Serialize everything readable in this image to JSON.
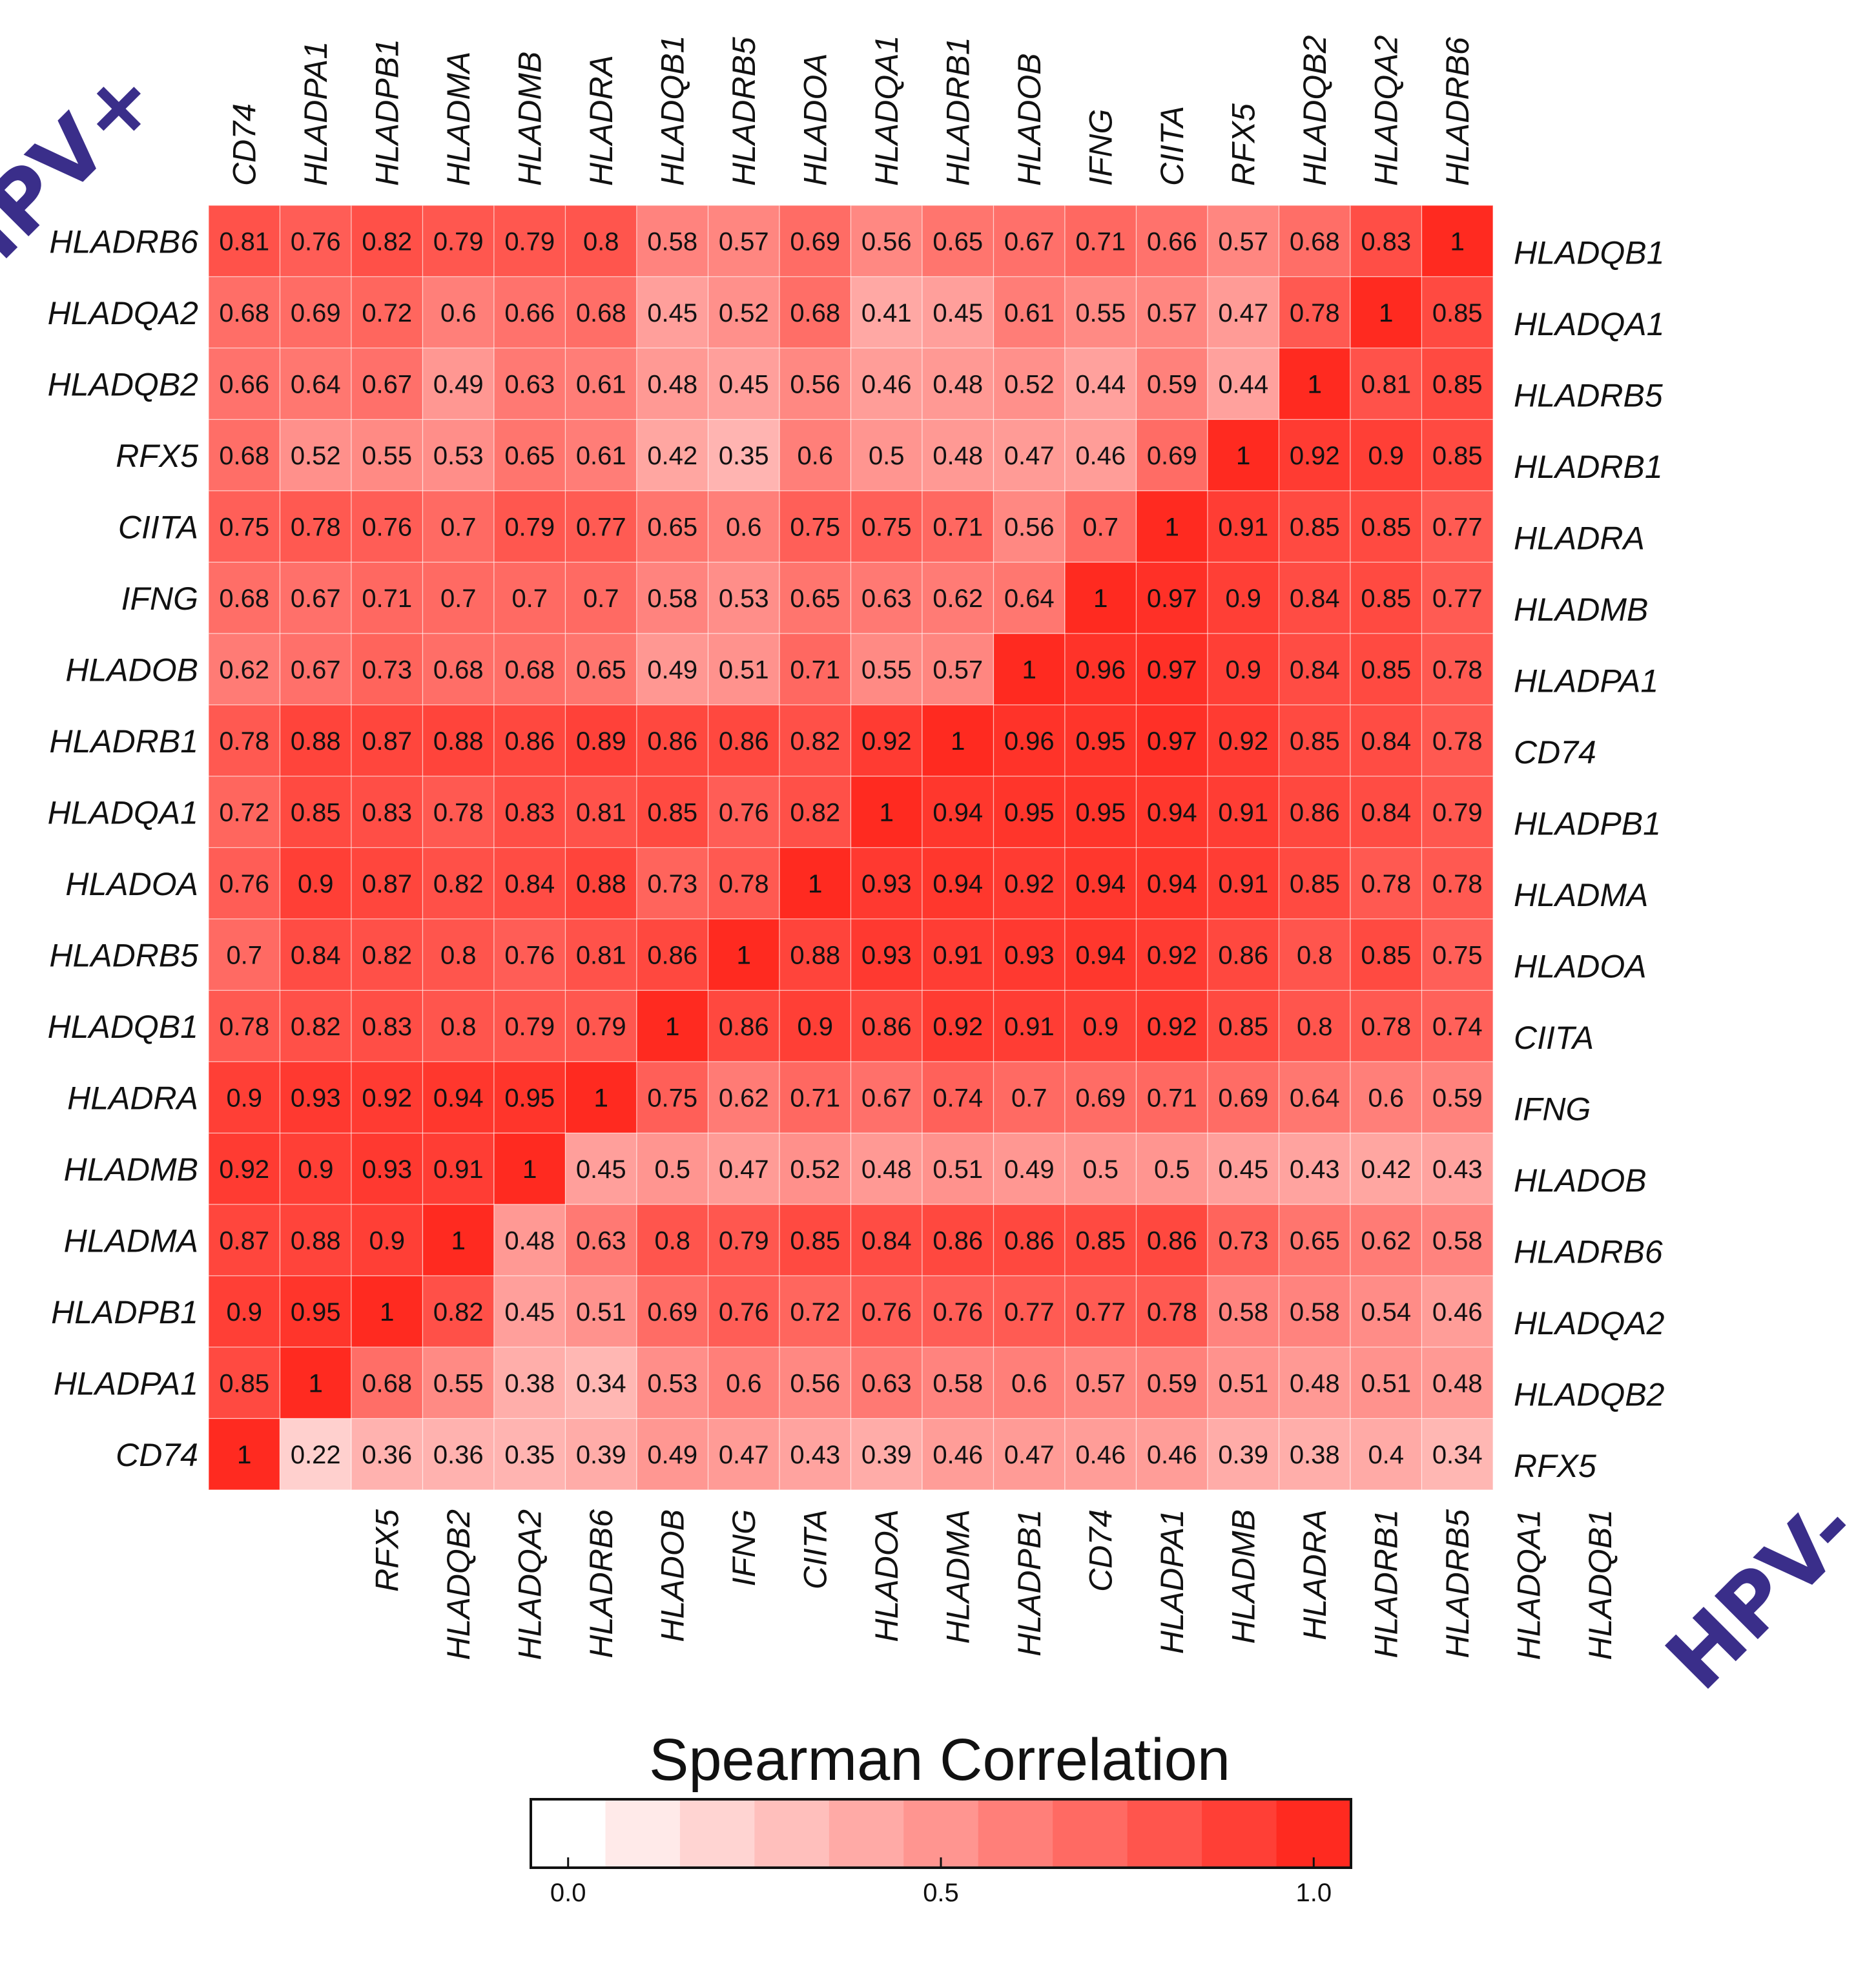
{
  "chart_data": {
    "type": "heatmap",
    "title": "Spearman Correlation",
    "groups": {
      "upper_left": "HPV+",
      "lower_right": "HPV-"
    },
    "colors": {
      "group_label": "#3a2e8a",
      "max": "#ff2a20",
      "min": "#ffffff"
    },
    "hpv_pos": {
      "columns": [
        "CD74",
        "HLADPA1",
        "HLADPB1",
        "HLADMA",
        "HLADMB",
        "HLADRA",
        "HLADQB1",
        "HLADRB5",
        "HLADOA",
        "HLADQA1",
        "HLADRB1",
        "HLADOB",
        "IFNG",
        "CIITA",
        "RFX5",
        "HLADQB2",
        "HLADQA2",
        "HLADRB6"
      ],
      "rows": [
        {
          "label": "HLADRB6",
          "values": [
            "0.81",
            "0.76",
            "0.82",
            "0.79",
            "0.79",
            "0.8",
            "0.58",
            "0.57",
            "0.69",
            "0.56",
            "0.65",
            "0.67",
            "0.71",
            "0.66",
            "0.57",
            "0.68",
            "0.83",
            "1"
          ]
        },
        {
          "label": "HLADQA2",
          "values": [
            "0.68",
            "0.69",
            "0.72",
            "0.6",
            "0.66",
            "0.68",
            "0.45",
            "0.52",
            "0.68",
            "0.41",
            "0.45",
            "0.61",
            "0.55",
            "0.57",
            "0.47",
            "0.78",
            "1"
          ]
        },
        {
          "label": "HLADQB2",
          "values": [
            "0.66",
            "0.64",
            "0.67",
            "0.49",
            "0.63",
            "0.61",
            "0.48",
            "0.45",
            "0.56",
            "0.46",
            "0.48",
            "0.52",
            "0.44",
            "0.59",
            "0.44",
            "1"
          ]
        },
        {
          "label": "RFX5",
          "values": [
            "0.68",
            "0.52",
            "0.55",
            "0.53",
            "0.65",
            "0.61",
            "0.42",
            "0.35",
            "0.6",
            "0.5",
            "0.48",
            "0.47",
            "0.46",
            "0.69",
            "1"
          ]
        },
        {
          "label": "CIITA",
          "values": [
            "0.75",
            "0.78",
            "0.76",
            "0.7",
            "0.79",
            "0.77",
            "0.65",
            "0.6",
            "0.75",
            "0.75",
            "0.71",
            "0.56",
            "0.7",
            "1"
          ]
        },
        {
          "label": "IFNG",
          "values": [
            "0.68",
            "0.67",
            "0.71",
            "0.7",
            "0.7",
            "0.7",
            "0.58",
            "0.53",
            "0.65",
            "0.63",
            "0.62",
            "0.64",
            "1"
          ]
        },
        {
          "label": "HLADOB",
          "values": [
            "0.62",
            "0.67",
            "0.73",
            "0.68",
            "0.68",
            "0.65",
            "0.49",
            "0.51",
            "0.71",
            "0.55",
            "0.57",
            "1"
          ]
        },
        {
          "label": "HLADRB1",
          "values": [
            "0.78",
            "0.88",
            "0.87",
            "0.88",
            "0.86",
            "0.89",
            "0.86",
            "0.86",
            "0.82",
            "0.92",
            "1"
          ]
        },
        {
          "label": "HLADQA1",
          "values": [
            "0.72",
            "0.85",
            "0.83",
            "0.78",
            "0.83",
            "0.81",
            "0.85",
            "0.76",
            "0.82",
            "1"
          ]
        },
        {
          "label": "HLADOA",
          "values": [
            "0.76",
            "0.9",
            "0.87",
            "0.82",
            "0.84",
            "0.88",
            "0.73",
            "0.78",
            "1"
          ]
        },
        {
          "label": "HLADRB5",
          "values": [
            "0.7",
            "0.84",
            "0.82",
            "0.8",
            "0.76",
            "0.81",
            "0.86",
            "1"
          ]
        },
        {
          "label": "HLADQB1",
          "values": [
            "0.78",
            "0.82",
            "0.83",
            "0.8",
            "0.79",
            "0.79",
            "1"
          ]
        },
        {
          "label": "HLADRA",
          "values": [
            "0.9",
            "0.93",
            "0.92",
            "0.94",
            "0.95",
            "1"
          ]
        },
        {
          "label": "HLADMB",
          "values": [
            "0.92",
            "0.9",
            "0.93",
            "0.91",
            "1"
          ]
        },
        {
          "label": "HLADMA",
          "values": [
            "0.87",
            "0.88",
            "0.9",
            "1"
          ]
        },
        {
          "label": "HLADPB1",
          "values": [
            "0.9",
            "0.95",
            "1"
          ]
        },
        {
          "label": "HLADPA1",
          "values": [
            "0.85",
            "1"
          ]
        },
        {
          "label": "CD74",
          "values": [
            "1"
          ]
        }
      ]
    },
    "hpv_neg": {
      "columns": [
        "RFX5",
        "HLADQB2",
        "HLADQA2",
        "HLADRB6",
        "HLADOB",
        "IFNG",
        "CIITA",
        "HLADOA",
        "HLADMA",
        "HLADPB1",
        "CD74",
        "HLADPA1",
        "HLADMB",
        "HLADRA",
        "HLADRB1",
        "HLADRB5",
        "HLADQA1",
        "HLADQB1"
      ],
      "rows": [
        {
          "label": "HLADQB1",
          "values": [
            "1"
          ]
        },
        {
          "label": "HLADQA1",
          "values": [
            "1",
            "0.85"
          ]
        },
        {
          "label": "HLADRB5",
          "values": [
            "1",
            "0.81",
            "0.85"
          ]
        },
        {
          "label": "HLADRB1",
          "values": [
            "1",
            "0.92",
            "0.9",
            "0.85"
          ]
        },
        {
          "label": "HLADRA",
          "values": [
            "1",
            "0.91",
            "0.85",
            "0.85",
            "0.77"
          ]
        },
        {
          "label": "HLADMB",
          "values": [
            "1",
            "0.97",
            "0.9",
            "0.84",
            "0.85",
            "0.77"
          ]
        },
        {
          "label": "HLADPA1",
          "values": [
            "1",
            "0.96",
            "0.97",
            "0.9",
            "0.84",
            "0.85",
            "0.78"
          ]
        },
        {
          "label": "CD74",
          "values": [
            "1",
            "0.96",
            "0.95",
            "0.97",
            "0.92",
            "0.85",
            "0.84",
            "0.78"
          ]
        },
        {
          "label": "HLADPB1",
          "values": [
            "1",
            "0.94",
            "0.95",
            "0.95",
            "0.94",
            "0.91",
            "0.86",
            "0.84",
            "0.79"
          ]
        },
        {
          "label": "HLADMA",
          "values": [
            "1",
            "0.93",
            "0.94",
            "0.92",
            "0.94",
            "0.94",
            "0.91",
            "0.85",
            "0.78",
            "0.78"
          ]
        },
        {
          "label": "HLADOA",
          "values": [
            "1",
            "0.88",
            "0.93",
            "0.91",
            "0.93",
            "0.94",
            "0.92",
            "0.86",
            "0.8",
            "0.85",
            "0.75"
          ]
        },
        {
          "label": "CIITA",
          "values": [
            "1",
            "0.86",
            "0.9",
            "0.86",
            "0.92",
            "0.91",
            "0.9",
            "0.92",
            "0.85",
            "0.8",
            "0.78",
            "0.74"
          ]
        },
        {
          "label": "IFNG",
          "values": [
            "1",
            "0.75",
            "0.62",
            "0.71",
            "0.67",
            "0.74",
            "0.7",
            "0.69",
            "0.71",
            "0.69",
            "0.64",
            "0.6",
            "0.59"
          ]
        },
        {
          "label": "HLADOB",
          "values": [
            "1",
            "0.45",
            "0.5",
            "0.47",
            "0.52",
            "0.48",
            "0.51",
            "0.49",
            "0.5",
            "0.5",
            "0.45",
            "0.43",
            "0.42",
            "0.43"
          ]
        },
        {
          "label": "HLADRB6",
          "values": [
            "1",
            "0.48",
            "0.63",
            "0.8",
            "0.79",
            "0.85",
            "0.84",
            "0.86",
            "0.86",
            "0.85",
            "0.86",
            "0.73",
            "0.65",
            "0.62",
            "0.58"
          ]
        },
        {
          "label": "HLADQA2",
          "values": [
            "1",
            "0.82",
            "0.45",
            "0.51",
            "0.69",
            "0.76",
            "0.72",
            "0.76",
            "0.76",
            "0.77",
            "0.77",
            "0.78",
            "0.58",
            "0.58",
            "0.54",
            "0.46"
          ]
        },
        {
          "label": "HLADQB2",
          "values": [
            "1",
            "0.68",
            "0.55",
            "0.38",
            "0.34",
            "0.53",
            "0.6",
            "0.56",
            "0.63",
            "0.58",
            "0.6",
            "0.57",
            "0.59",
            "0.51",
            "0.48",
            "0.51",
            "0.48"
          ]
        },
        {
          "label": "RFX5",
          "values": [
            "1",
            "0.22",
            "0.36",
            "0.36",
            "0.35",
            "0.39",
            "0.49",
            "0.47",
            "0.43",
            "0.39",
            "0.46",
            "0.47",
            "0.46",
            "0.46",
            "0.39",
            "0.38",
            "0.4",
            "0.34"
          ]
        }
      ]
    },
    "colorbar": {
      "title": "Spearman Correlation",
      "range": [
        0,
        1
      ],
      "ticks": [
        "0.0",
        "0.5",
        "1.0"
      ],
      "steps": 11
    }
  }
}
